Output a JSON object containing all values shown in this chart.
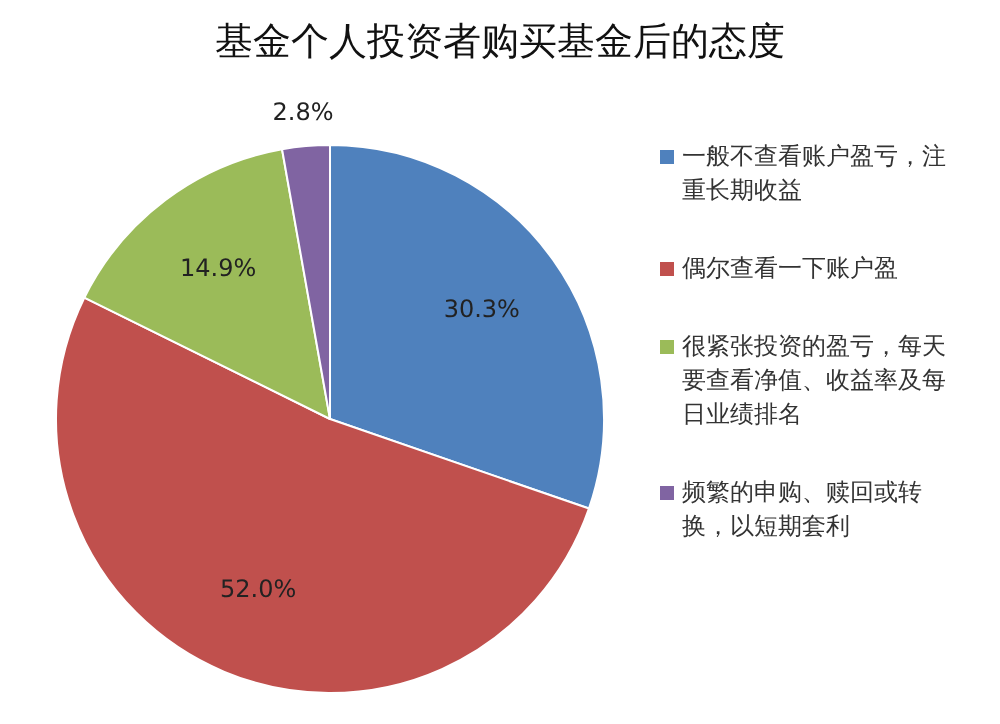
{
  "chart_data": {
    "type": "pie",
    "title": "基金个人投资者购买基金后的态度",
    "categories": [
      "一般不查看账户盈亏，注重长期收益",
      "偶尔查看一下账户盈",
      "很紧张投资的盈亏，每天要查看净值、收益率及每日业绩排名",
      "频繁的申购、赎回或转换，以短期套利"
    ],
    "values": [
      30.3,
      52.0,
      14.9,
      2.8
    ],
    "colors": [
      "#4f81bd",
      "#c0504d",
      "#9bbb59",
      "#8064a2"
    ],
    "value_labels": [
      "30.3%",
      "52.0%",
      "14.9%",
      "2.8%"
    ],
    "legend": "right"
  }
}
